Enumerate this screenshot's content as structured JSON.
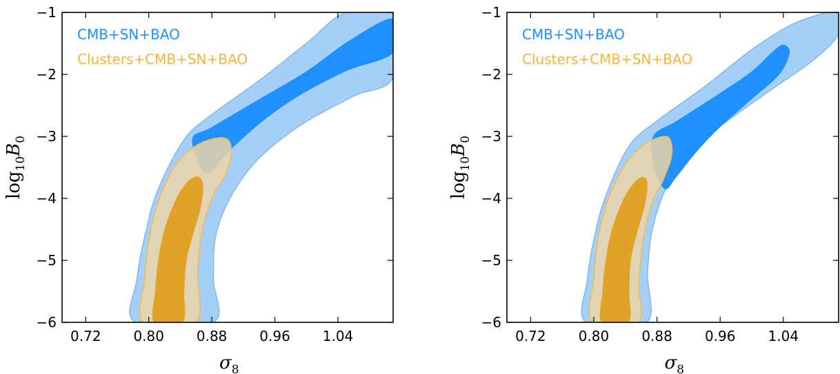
{
  "colors": {
    "cmb_inner": "#1e90ff",
    "cmb_outer": "#a5cff6",
    "cmb_edge": "#7fb8ee",
    "clusters_inner": "#e0a020",
    "clusters_outer": "#ecd5a6",
    "clusters_edge": "#f1b955",
    "legend_cmb": "#1e90ff",
    "legend_clusters": "#f5b43a"
  },
  "chart_data": [
    {
      "type": "contour",
      "xlabel": "σ8",
      "ylabel": "log10B0",
      "xlim": [
        0.69,
        1.11
      ],
      "ylim": [
        -6,
        -1
      ],
      "xticks": [
        "0.72",
        "0.80",
        "0.88",
        "0.96",
        "1.04"
      ],
      "yticks": [
        "−1",
        "−2",
        "−3",
        "−4",
        "−5",
        "−6"
      ],
      "legend_position": "top-left",
      "grid": false,
      "series": [
        {
          "name": "CMB+SN+BAO",
          "color": "#1e90ff",
          "outer": [
            [
              0.783,
              -6
            ],
            [
              0.785,
              -5.3
            ],
            [
              0.797,
              -4.5
            ],
            [
              0.812,
              -3.85
            ],
            [
              0.845,
              -3.05
            ],
            [
              0.88,
              -2.65
            ],
            [
              0.94,
              -2.1
            ],
            [
              1.0,
              -1.5
            ],
            [
              1.05,
              -1.0
            ],
            [
              1.11,
              -1.0
            ],
            [
              1.11,
              -2.05
            ],
            [
              1.06,
              -2.35
            ],
            [
              0.995,
              -2.8
            ],
            [
              0.94,
              -3.35
            ],
            [
              0.905,
              -3.95
            ],
            [
              0.885,
              -4.6
            ],
            [
              0.882,
              -5.3
            ],
            [
              0.882,
              -6
            ]
          ],
          "inner": [
            [
              0.855,
              -3.05
            ],
            [
              0.88,
              -2.85
            ],
            [
              0.94,
              -2.4
            ],
            [
              1.0,
              -1.95
            ],
            [
              1.055,
              -1.45
            ],
            [
              1.11,
              -1.1
            ],
            [
              1.11,
              -1.65
            ],
            [
              1.05,
              -1.95
            ],
            [
              0.99,
              -2.35
            ],
            [
              0.945,
              -2.75
            ],
            [
              0.905,
              -3.2
            ],
            [
              0.873,
              -3.6
            ]
          ]
        },
        {
          "name": "Clusters+CMB+SN+BAO",
          "color": "#f5b43a",
          "outer": [
            [
              0.793,
              -6
            ],
            [
              0.795,
              -5.3
            ],
            [
              0.801,
              -4.6
            ],
            [
              0.815,
              -3.95
            ],
            [
              0.835,
              -3.45
            ],
            [
              0.86,
              -3.15
            ],
            [
              0.885,
              -3.03
            ],
            [
              0.9,
              -3.05
            ],
            [
              0.905,
              -3.25
            ],
            [
              0.898,
              -3.6
            ],
            [
              0.882,
              -3.95
            ],
            [
              0.868,
              -4.5
            ],
            [
              0.862,
              -5.2
            ],
            [
              0.86,
              -6
            ]
          ],
          "inner": [
            [
              0.807,
              -6
            ],
            [
              0.808,
              -5.5
            ],
            [
              0.812,
              -5.0
            ],
            [
              0.82,
              -4.5
            ],
            [
              0.835,
              -4.0
            ],
            [
              0.85,
              -3.72
            ],
            [
              0.863,
              -3.65
            ],
            [
              0.869,
              -3.8
            ],
            [
              0.866,
              -4.15
            ],
            [
              0.857,
              -4.55
            ],
            [
              0.848,
              -5.0
            ],
            [
              0.845,
              -5.5
            ],
            [
              0.843,
              -6
            ]
          ]
        }
      ]
    },
    {
      "type": "contour",
      "xlabel": "σ8",
      "ylabel": "log10B0",
      "xlim": [
        0.69,
        1.11
      ],
      "ylim": [
        -6,
        -1
      ],
      "xticks": [
        "0.72",
        "0.80",
        "0.88",
        "0.96",
        "1.04"
      ],
      "yticks": [
        "−1",
        "−2",
        "−3",
        "−4",
        "−5",
        "−6"
      ],
      "legend_position": "top-left",
      "grid": false,
      "series": [
        {
          "name": "CMB+SN+BAO",
          "color": "#1e90ff",
          "outer": [
            [
              0.79,
              -6
            ],
            [
              0.792,
              -5.3
            ],
            [
              0.802,
              -4.55
            ],
            [
              0.817,
              -3.9
            ],
            [
              0.845,
              -3.15
            ],
            [
              0.88,
              -2.75
            ],
            [
              0.94,
              -2.2
            ],
            [
              1.0,
              -1.6
            ],
            [
              1.05,
              -1.2
            ],
            [
              1.095,
              -1.0
            ],
            [
              1.11,
              -1.0
            ],
            [
              1.11,
              -1.35
            ],
            [
              1.08,
              -1.75
            ],
            [
              1.03,
              -2.2
            ],
            [
              0.98,
              -2.65
            ],
            [
              0.93,
              -3.15
            ],
            [
              0.895,
              -3.75
            ],
            [
              0.875,
              -4.45
            ],
            [
              0.868,
              -5.2
            ],
            [
              0.867,
              -6
            ]
          ],
          "inner": [
            [
              0.875,
              -3.0
            ],
            [
              0.905,
              -2.75
            ],
            [
              0.96,
              -2.3
            ],
            [
              1.0,
              -1.95
            ],
            [
              1.025,
              -1.65
            ],
            [
              1.04,
              -1.52
            ],
            [
              1.048,
              -1.65
            ],
            [
              1.035,
              -2.0
            ],
            [
              1.0,
              -2.4
            ],
            [
              0.96,
              -2.85
            ],
            [
              0.93,
              -3.25
            ],
            [
              0.905,
              -3.65
            ],
            [
              0.89,
              -3.85
            ],
            [
              0.876,
              -3.5
            ]
          ]
        },
        {
          "name": "Clusters+CMB+SN+BAO",
          "color": "#f5b43a",
          "outer": [
            [
              0.798,
              -6
            ],
            [
              0.8,
              -5.3
            ],
            [
              0.806,
              -4.6
            ],
            [
              0.82,
              -3.95
            ],
            [
              0.84,
              -3.45
            ],
            [
              0.865,
              -3.12
            ],
            [
              0.89,
              -3.0
            ],
            [
              0.898,
              -3.1
            ],
            [
              0.898,
              -3.35
            ],
            [
              0.888,
              -3.7
            ],
            [
              0.873,
              -4.1
            ],
            [
              0.862,
              -4.7
            ],
            [
              0.857,
              -5.4
            ],
            [
              0.856,
              -6
            ]
          ],
          "inner": [
            [
              0.81,
              -6
            ],
            [
              0.811,
              -5.5
            ],
            [
              0.815,
              -5.0
            ],
            [
              0.823,
              -4.5
            ],
            [
              0.838,
              -4.0
            ],
            [
              0.853,
              -3.72
            ],
            [
              0.864,
              -3.66
            ],
            [
              0.868,
              -3.8
            ],
            [
              0.864,
              -4.15
            ],
            [
              0.855,
              -4.55
            ],
            [
              0.847,
              -5.0
            ],
            [
              0.845,
              -5.5
            ],
            [
              0.844,
              -6
            ]
          ]
        }
      ]
    }
  ]
}
